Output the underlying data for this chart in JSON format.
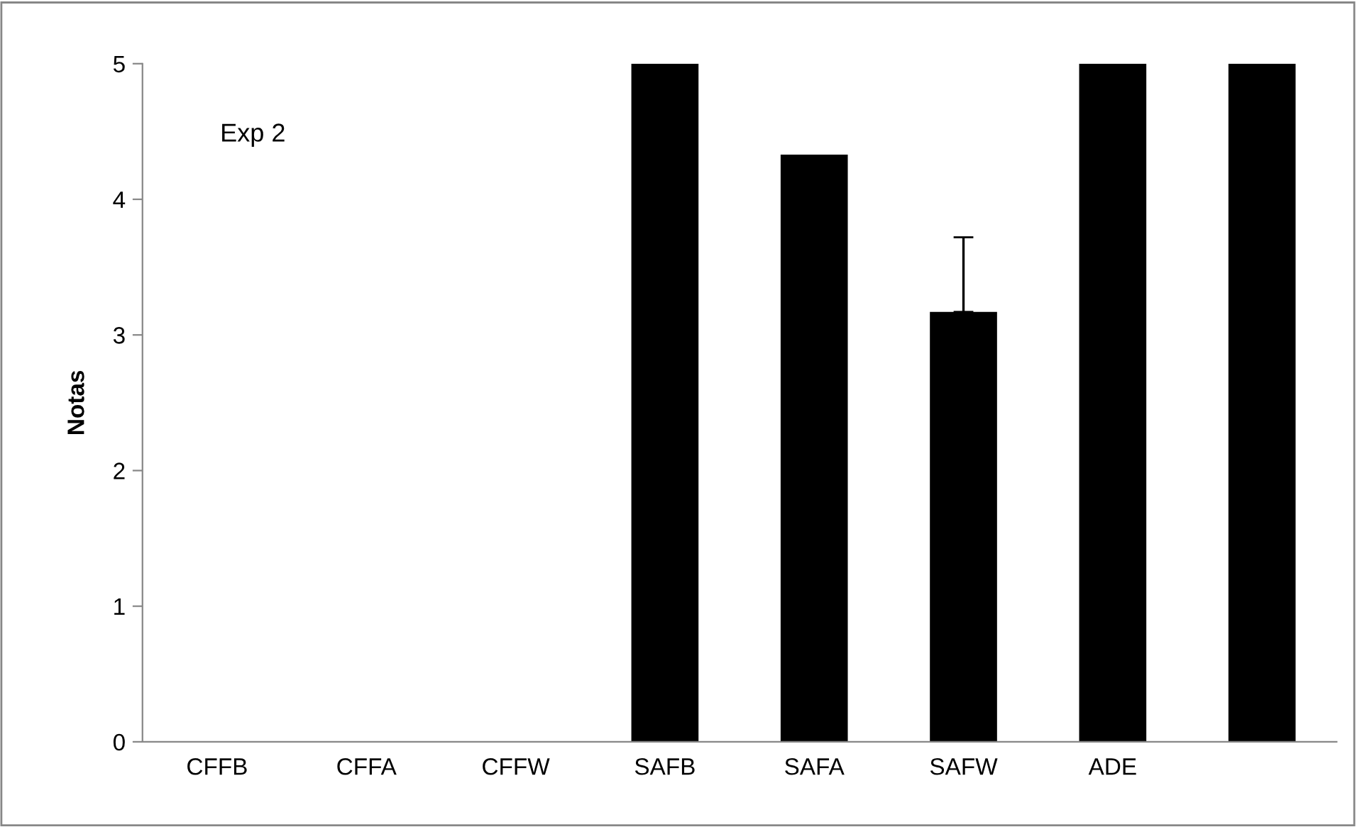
{
  "chart_data": {
    "type": "bar",
    "ylabel": "Notas",
    "categories": [
      "CFFB",
      "CFFA",
      "CFFW",
      "SAFB",
      "SAFA",
      "SAFW",
      "ADE",
      null
    ],
    "values": [
      0,
      0,
      0,
      5,
      4.33,
      3.17,
      5,
      5
    ],
    "errors": [
      null,
      null,
      null,
      null,
      null,
      [
        3.17,
        3.72
      ],
      null,
      null
    ],
    "color": "#000000",
    "ylim": [
      0,
      5
    ],
    "yticks": [
      0,
      1,
      2,
      3,
      4,
      5
    ],
    "grid": false,
    "annotations": [
      "Exp 2"
    ]
  }
}
